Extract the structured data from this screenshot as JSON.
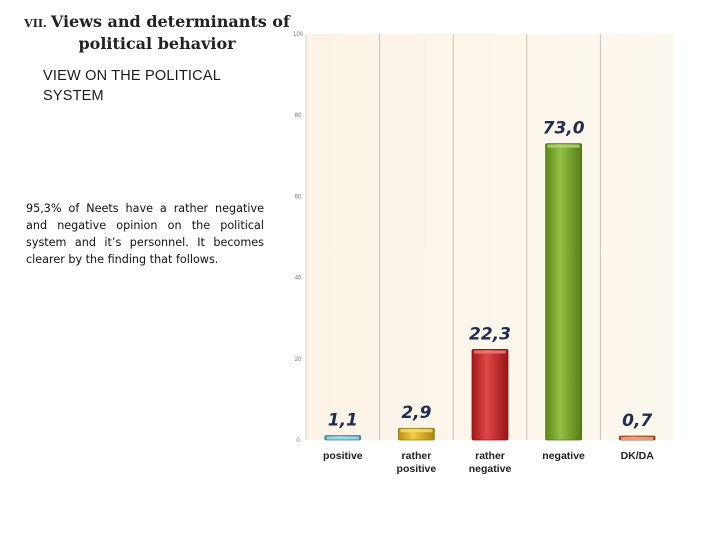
{
  "slide": {
    "section_number": "VII.",
    "title_line1": "Views and determinants of",
    "title_line2": "political behavior",
    "subtitle": "VIEW ON THE POLITICAL SYSTEM",
    "body": "95,3% of Neets have a rather negative and negative opinion on the political system and it’s personnel. It becomes clearer by the finding that follows."
  },
  "chart_data": {
    "type": "bar",
    "categories": [
      [
        "positive"
      ],
      [
        "rather",
        "positive"
      ],
      [
        "rather",
        "negative"
      ],
      [
        "negative"
      ],
      [
        "DK/DA"
      ]
    ],
    "values": [
      1.1,
      2.9,
      22.3,
      73.0,
      0.7
    ],
    "value_labels": [
      "1,1",
      "2,9",
      "22,3",
      "73,0",
      "0,7"
    ],
    "yticks": [
      "0",
      "20",
      "40",
      "60",
      "80",
      "100"
    ],
    "ylim": [
      0,
      100
    ],
    "grid": "vertical separators",
    "colors": [
      "#5cc7d6",
      "#f2bf1a",
      "#d81f1f",
      "#7bb31e",
      "#e36a28"
    ],
    "title": "",
    "xlabel": "",
    "ylabel": ""
  }
}
